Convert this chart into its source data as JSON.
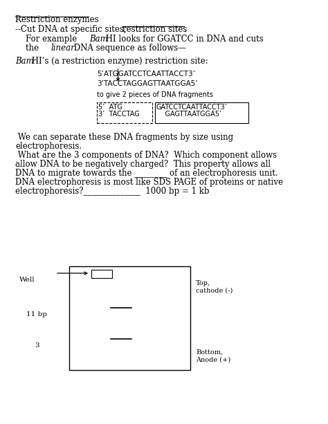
{
  "bg_color": "#ffffff",
  "title_text": "Restriction enzymes",
  "line1": "--Cut DNA at specific sites, ",
  "line1b": "restriction sites",
  "line1c": ".",
  "line2a": "    For example ",
  "line2b": "Bam",
  "line2c": " HI looks for GGATCC in DNA and cuts",
  "line3": "    the ",
  "line3b": "linear",
  "line3c": " DNA sequence as follows—",
  "line4a": "Bam",
  "line4b": " HI’s (a restriction enzyme) restriction site:",
  "seq_top": "5’ATGGATCCTCAATTACCT3’",
  "seq_bot": "3’TACCTAGGAGTTAATGGA5’",
  "cut_label": "to give 2 pieces of DNA fragments",
  "frag1_line1": "5’  ATG",
  "frag1_line2": "3’  TACCTAG",
  "frag2_line1": "GATCCTCAATTACCT3’",
  "frag2_line2": "    GAGTTAATGGA5’",
  "para1a": " We can separate these DNA fragments by size using",
  "para1b": "electrophoresis.",
  "para2a": " What are the 3 components of DNA?  Which component allows",
  "para2b": "allow DNA to be negatively charged?  This property allows all",
  "para2c": "DNA to migrate towards the ________ of an electrophoresis unit.",
  "para2d": "DNA electrophoresis is most like SDS PAGE of proteins or native",
  "para2e": "electrophoresis?______________  1000 bp = 1 kb",
  "well_label": "Well",
  "top_label": "Top,\ncathode (-)",
  "bp11_label": "11 bp",
  "bp3_label": "3",
  "bottom_label": "Bottom,\nAnode (+)",
  "font_size_body": 8.5,
  "font_size_mono": 7.5,
  "font_size_small": 7.5
}
